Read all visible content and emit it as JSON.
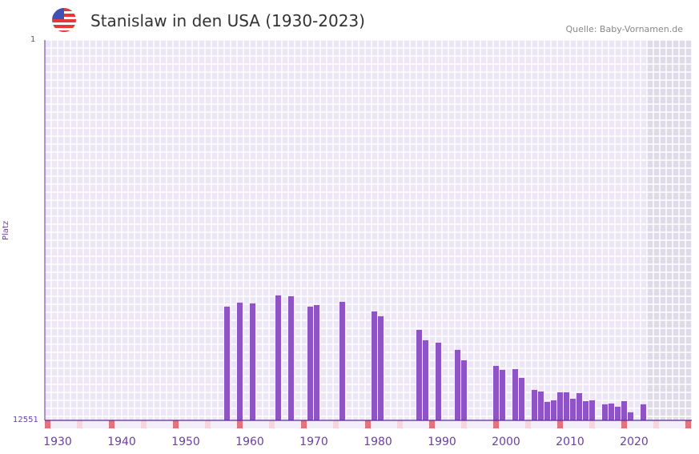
{
  "header": {
    "title": "Stanislaw in den USA (1930-2023)",
    "source": "Quelle: Baby-Vornamen.de",
    "flag_icon": "us-flag-icon"
  },
  "chart_data": {
    "type": "bar",
    "title": "Stanislaw in den USA (1930-2023)",
    "ylabel": "Platz",
    "ylim": [
      12551,
      1
    ],
    "y_ticks": [
      "1",
      "12551"
    ],
    "xlim": [
      1928,
      2028
    ],
    "x_ticks": [
      "1930",
      "1940",
      "1950",
      "1960",
      "1970",
      "1980",
      "1990",
      "2000",
      "2010",
      "2020"
    ],
    "shaded_future_from": 2022,
    "bar_color": "#8e54c6",
    "years": [
      1956,
      1958,
      1960,
      1964,
      1966,
      1969,
      1970,
      1974,
      1979,
      1980,
      1986,
      1987,
      1989,
      1992,
      1993,
      1998,
      1999,
      2001,
      2002,
      2004,
      2005,
      2006,
      2007,
      2008,
      2009,
      2010,
      2011,
      2012,
      2013,
      2015,
      2016,
      2017,
      2018,
      2019,
      2021
    ],
    "ranks": [
      8798,
      8666,
      8692,
      8428,
      8455,
      8798,
      8745,
      8639,
      8957,
      9115,
      9564,
      9908,
      9987,
      10225,
      10568,
      10753,
      10885,
      10859,
      11149,
      11546,
      11599,
      11942,
      11889,
      11625,
      11625,
      11837,
      11651,
      11916,
      11889,
      12021,
      11995,
      12100,
      11916,
      12285,
      12021
    ]
  }
}
